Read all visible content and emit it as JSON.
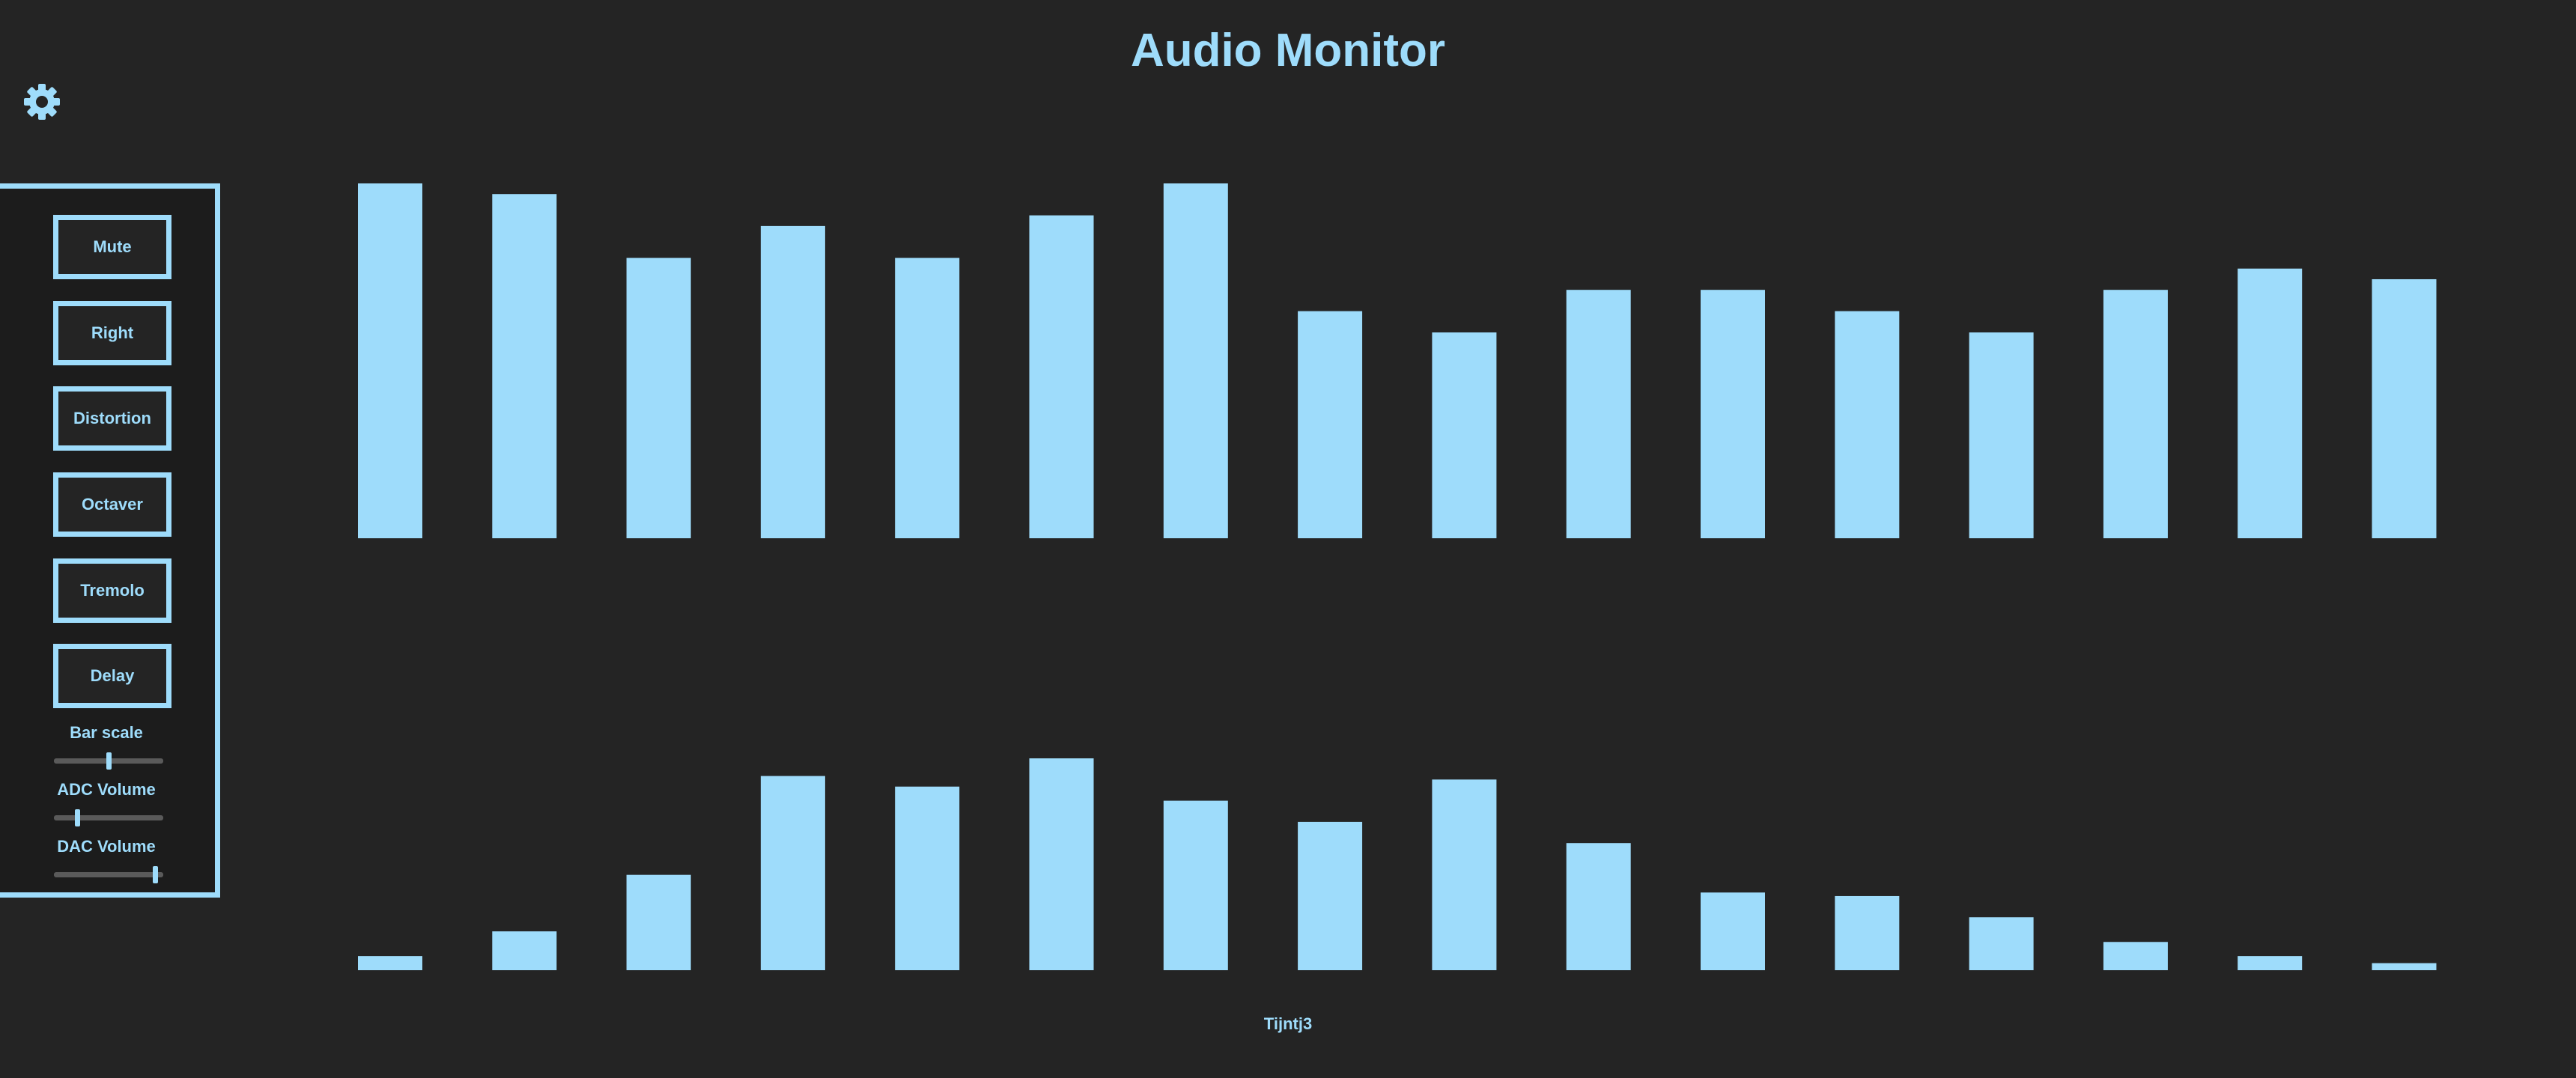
{
  "header": {
    "title": "Audio Monitor",
    "settings_icon": "gear-icon"
  },
  "controls": {
    "buttons": [
      "Mute",
      "Right",
      "Distortion",
      "Octaver",
      "Tremolo",
      "Delay"
    ],
    "sliders": [
      {
        "label": "Bar scale",
        "value": 0.5
      },
      {
        "label": "ADC Volume",
        "value": 0.2
      },
      {
        "label": "DAC Volume",
        "value": 0.95
      }
    ]
  },
  "footer": {
    "text": "Tijntj3"
  },
  "colors": {
    "background": "#242424",
    "accent": "#9edcfb",
    "panel": "#1c1c1c"
  },
  "chart_data": [
    {
      "type": "bar",
      "series": [
        {
          "values": [
            100,
            97,
            79,
            88,
            79,
            91,
            100,
            64,
            58,
            70,
            70,
            64,
            58,
            70,
            76,
            73
          ]
        }
      ],
      "ylim": [
        0,
        100
      ]
    },
    {
      "type": "bar",
      "series": [
        {
          "values": [
            4,
            11,
            27,
            55,
            52,
            60,
            48,
            42,
            54,
            36,
            22,
            21,
            15,
            8,
            4,
            2
          ]
        }
      ],
      "ylim": [
        0,
        60
      ]
    }
  ]
}
